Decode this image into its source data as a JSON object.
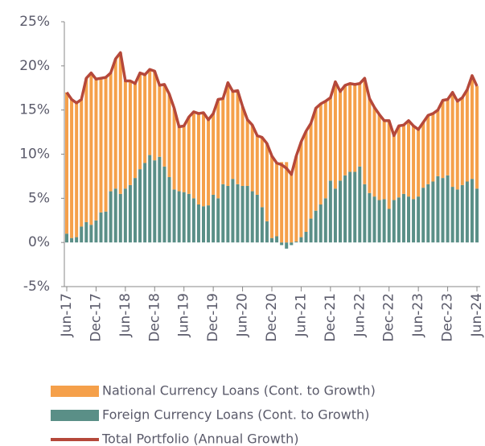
{
  "chart_data": {
    "type": "bar",
    "categories": [
      "Jun-17",
      null,
      null,
      null,
      null,
      null,
      "Dec-17",
      null,
      null,
      null,
      null,
      null,
      "Jun-18",
      null,
      null,
      null,
      null,
      null,
      "Dec-18",
      null,
      null,
      null,
      null,
      null,
      "Jun-19",
      null,
      null,
      null,
      null,
      null,
      "Dec-19",
      null,
      null,
      null,
      null,
      null,
      "Jun-20",
      null,
      null,
      null,
      null,
      null,
      "Dec-20",
      null,
      null,
      null,
      null,
      null,
      "Jun-21",
      null,
      null,
      null,
      null,
      null,
      "Dec-21",
      null,
      null,
      null,
      null,
      null,
      "Jun-22",
      null,
      null,
      null,
      null,
      null,
      "Dec-22",
      null,
      null,
      null,
      null,
      null,
      "Jun-23",
      null,
      null,
      null,
      null,
      null,
      "Dec-23",
      null,
      null,
      null,
      null,
      null,
      "Jun-24"
    ],
    "series": [
      {
        "name": "National Currency Loans (Cont. to Growth)",
        "color": "#f5a04a",
        "kind": "bar",
        "values": [
          16.0,
          15.7,
          15.2,
          14.4,
          16.3,
          17.2,
          16.0,
          15.2,
          15.2,
          13.4,
          14.7,
          16.0,
          12.2,
          11.8,
          10.7,
          10.9,
          10.0,
          9.7,
          10.1,
          8.1,
          9.3,
          9.4,
          9.2,
          7.3,
          7.5,
          8.7,
          9.8,
          10.3,
          10.6,
          9.7,
          9.2,
          11.2,
          9.7,
          11.7,
          9.9,
          10.6,
          9.0,
          7.5,
          7.5,
          6.7,
          7.9,
          8.8,
          9.3,
          8.3,
          9.1,
          9.1,
          8.0,
          9.7,
          10.8,
          11.4,
          10.8,
          11.6,
          11.4,
          11.0,
          9.4,
          12.1,
          10.1,
          10.2,
          10.0,
          9.9,
          9.4,
          12.0,
          10.7,
          10.1,
          9.7,
          8.9,
          10.0,
          7.3,
          8.1,
          7.8,
          8.6,
          8.3,
          7.6,
          7.4,
          7.8,
          7.7,
          7.5,
          8.8,
          8.6,
          10.7,
          10.0,
          9.9,
          10.4,
          11.7,
          11.6
        ]
      },
      {
        "name": "Foreign Currency Loans (Cont. to Growth)",
        "color": "#5a8f87",
        "kind": "bar",
        "values": [
          1.0,
          0.5,
          0.6,
          1.8,
          2.3,
          2.0,
          2.5,
          3.4,
          3.5,
          5.8,
          6.1,
          5.5,
          6.1,
          6.5,
          7.3,
          8.3,
          9.0,
          9.9,
          9.3,
          9.7,
          8.6,
          7.4,
          6.0,
          5.8,
          5.7,
          5.5,
          5.0,
          4.3,
          4.1,
          4.2,
          5.4,
          5.0,
          6.6,
          6.4,
          7.2,
          6.6,
          6.4,
          6.4,
          5.8,
          5.4,
          4.0,
          2.4,
          0.5,
          0.7,
          -0.3,
          -0.7,
          -0.3,
          0.1,
          0.6,
          1.2,
          2.7,
          3.6,
          4.3,
          5.0,
          7.0,
          6.1,
          7.0,
          7.6,
          8.0,
          8.0,
          8.6,
          6.6,
          5.6,
          5.2,
          4.8,
          4.9,
          3.8,
          4.8,
          5.1,
          5.5,
          5.2,
          4.9,
          5.2,
          6.2,
          6.6,
          6.9,
          7.5,
          7.3,
          7.6,
          6.3,
          6.0,
          6.5,
          6.9,
          7.2,
          6.1
        ]
      },
      {
        "name": "Total Portfolio (Annual Growth)",
        "color": "#b5483a",
        "kind": "line",
        "values": [
          17.0,
          16.2,
          15.8,
          16.2,
          18.6,
          19.2,
          18.5,
          18.6,
          18.7,
          19.2,
          20.8,
          21.5,
          18.3,
          18.3,
          18.0,
          19.2,
          19.0,
          19.6,
          19.4,
          17.8,
          17.9,
          16.8,
          15.2,
          13.1,
          13.2,
          14.2,
          14.8,
          14.6,
          14.7,
          13.9,
          14.6,
          16.2,
          16.3,
          18.1,
          17.1,
          17.2,
          15.4,
          13.9,
          13.3,
          12.1,
          11.9,
          11.2,
          9.8,
          9.0,
          8.8,
          8.4,
          7.7,
          9.8,
          11.4,
          12.6,
          13.5,
          15.2,
          15.7,
          16.0,
          16.4,
          18.2,
          17.1,
          17.8,
          18.0,
          17.9,
          18.0,
          18.6,
          16.3,
          15.3,
          14.5,
          13.8,
          13.8,
          12.1,
          13.2,
          13.3,
          13.8,
          13.2,
          12.8,
          13.6,
          14.4,
          14.6,
          15.0,
          16.1,
          16.2,
          17.0,
          16.0,
          16.4,
          17.3,
          18.9,
          17.7
        ]
      }
    ],
    "ylim": [
      -5,
      25
    ],
    "yticks": [
      {
        "value": -5,
        "label": "-5%"
      },
      {
        "value": 0,
        "label": "0%"
      },
      {
        "value": 5,
        "label": "5%"
      },
      {
        "value": 10,
        "label": "10%"
      },
      {
        "value": 15,
        "label": "15%"
      },
      {
        "value": 20,
        "label": "20%"
      },
      {
        "value": 25,
        "label": "25%"
      }
    ],
    "grid": false,
    "legend": "bottom"
  }
}
